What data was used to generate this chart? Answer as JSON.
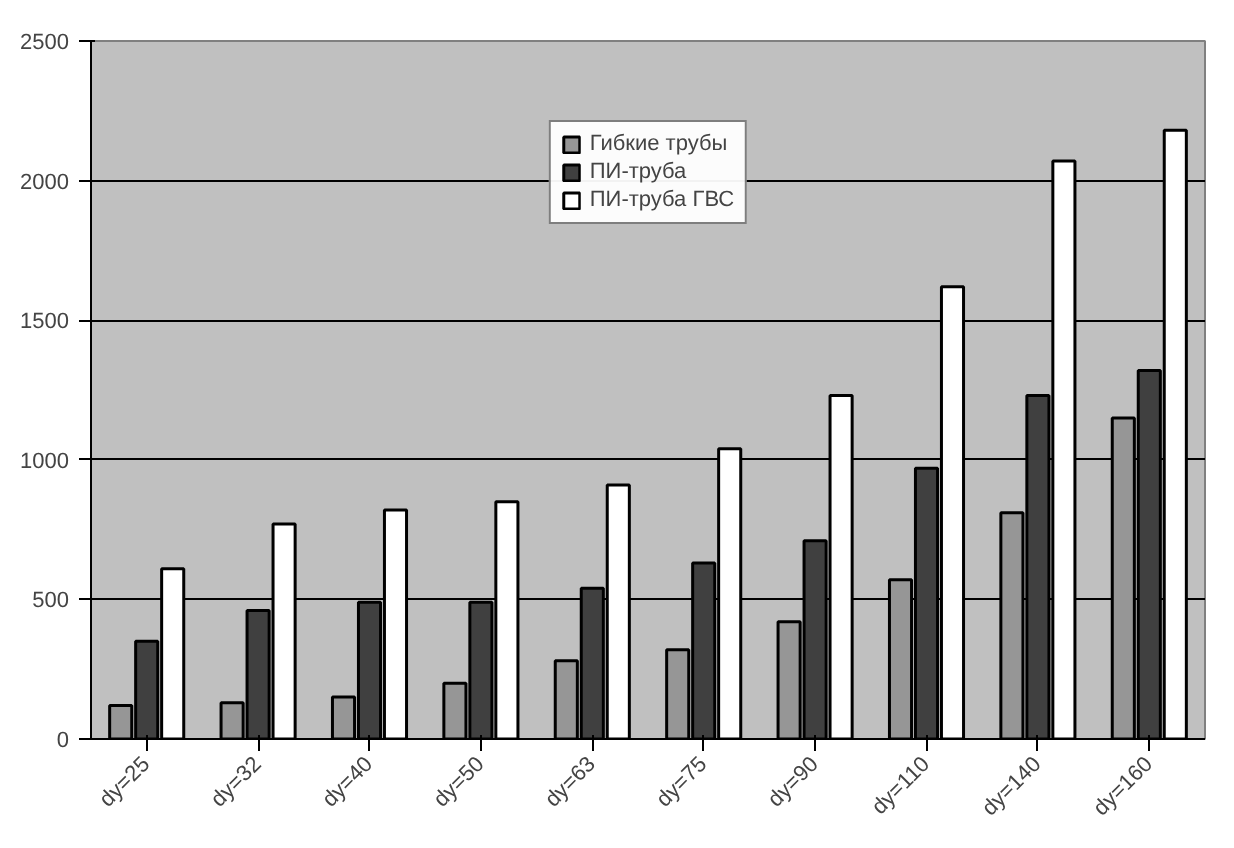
{
  "chart_data": {
    "type": "bar",
    "categories": [
      "dy=25",
      "dy=32",
      "dy=40",
      "dy=50",
      "dy=63",
      "dy=75",
      "dy=90",
      "dy=110",
      "dy=140",
      "dy=160"
    ],
    "series": [
      {
        "name": "Гибкие трубы",
        "color": "#969696",
        "values": [
          120,
          130,
          150,
          200,
          280,
          320,
          420,
          570,
          810,
          1150
        ]
      },
      {
        "name": "ПИ-труба",
        "color": "#404040",
        "values": [
          350,
          460,
          490,
          490,
          540,
          630,
          710,
          970,
          1230,
          1320
        ]
      },
      {
        "name": "ПИ-труба ГВС",
        "color": "#ffffff",
        "values": [
          610,
          770,
          820,
          850,
          910,
          1040,
          1230,
          1620,
          2070,
          2180
        ]
      }
    ],
    "ylim": [
      0,
      2500
    ],
    "yticks": [
      0,
      500,
      1000,
      1500,
      2000,
      2500
    ],
    "grid": "y",
    "legend": "top"
  }
}
